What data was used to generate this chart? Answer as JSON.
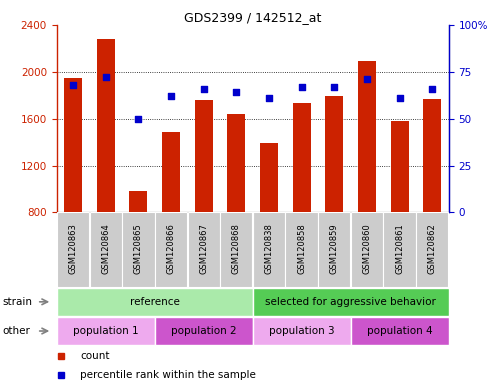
{
  "title": "GDS2399 / 142512_at",
  "samples": [
    "GSM120863",
    "GSM120864",
    "GSM120865",
    "GSM120866",
    "GSM120867",
    "GSM120868",
    "GSM120838",
    "GSM120858",
    "GSM120859",
    "GSM120860",
    "GSM120861",
    "GSM120862"
  ],
  "counts": [
    1950,
    2280,
    980,
    1490,
    1760,
    1640,
    1390,
    1730,
    1790,
    2090,
    1580,
    1770
  ],
  "percentile_ranks": [
    68,
    72,
    50,
    62,
    66,
    64,
    61,
    67,
    67,
    71,
    61,
    66
  ],
  "ylim_left": [
    800,
    2400
  ],
  "ylim_right": [
    0,
    100
  ],
  "yticks_left": [
    800,
    1200,
    1600,
    2000,
    2400
  ],
  "yticks_right": [
    0,
    25,
    50,
    75,
    100
  ],
  "bar_color": "#cc2200",
  "dot_color": "#0000cc",
  "tick_label_color_left": "#cc2200",
  "tick_label_color_right": "#0000cc",
  "strain_groups": [
    {
      "text": "reference",
      "span": [
        0,
        6
      ],
      "color": "#aaeaaa"
    },
    {
      "text": "selected for aggressive behavior",
      "span": [
        6,
        12
      ],
      "color": "#55cc55"
    }
  ],
  "other_groups": [
    {
      "text": "population 1",
      "span": [
        0,
        3
      ],
      "color": "#eeaaee"
    },
    {
      "text": "population 2",
      "span": [
        3,
        6
      ],
      "color": "#cc55cc"
    },
    {
      "text": "population 3",
      "span": [
        6,
        9
      ],
      "color": "#eeaaee"
    },
    {
      "text": "population 4",
      "span": [
        9,
        12
      ],
      "color": "#cc55cc"
    }
  ],
  "legend_items": [
    {
      "label": "count",
      "color": "#cc2200",
      "marker": "s"
    },
    {
      "label": "percentile rank within the sample",
      "color": "#0000cc",
      "marker": "s"
    }
  ],
  "xlabel_bg": "#cccccc",
  "grid_yticks": [
    1200,
    1600,
    2000
  ]
}
